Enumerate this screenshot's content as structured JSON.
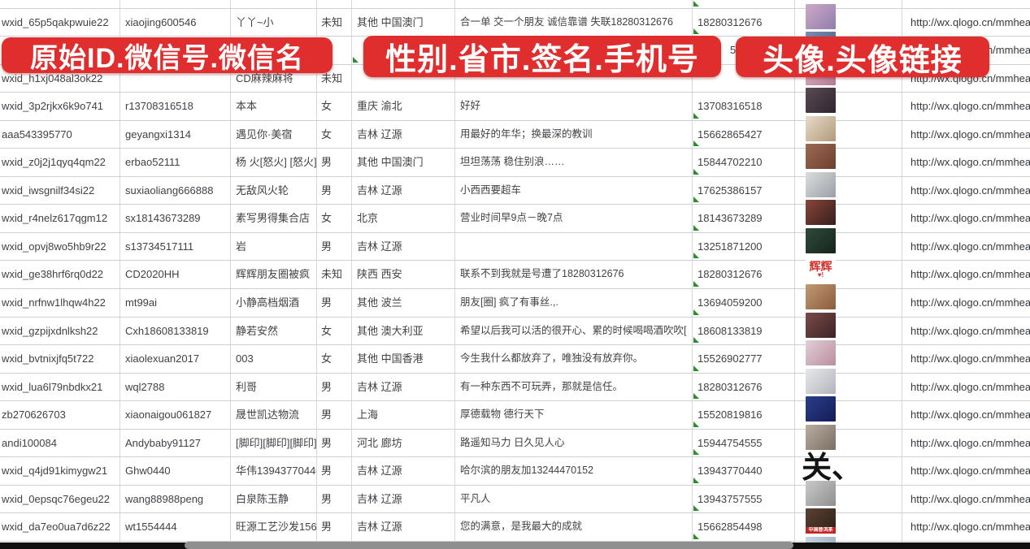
{
  "banners": [
    {
      "label": "原始ID.微信号.微信名"
    },
    {
      "label": "性别.省市.签名.手机号"
    },
    {
      "label": "头像.头像链接"
    }
  ],
  "colors": {
    "banner_red": "#e02e2e",
    "banner_text": "#ffffff",
    "gridline": "#ccd1d8",
    "flag_green": "#2e8b2e"
  },
  "table": {
    "column_semantics": [
      "original-id",
      "wechat-id",
      "wechat-name",
      "gender",
      "province-city",
      "signature",
      "phone",
      "avatar",
      "avatar-link"
    ],
    "rows": [
      {
        "sliver": true,
        "id": "",
        "wechat": "",
        "name": "",
        "gender": "",
        "region": "",
        "signature": "",
        "phone": "",
        "url": "",
        "flags": {
          "phone": true
        },
        "avatar": null
      },
      {
        "id": "wxid_65p5qakpwuie22",
        "wechat": "xiaojing600546",
        "name": "丫丫~小",
        "gender": "未知",
        "region": "其他 中国澳门",
        "signature": "合一单 交一个朋友 诚信靠谱 失联18280312676",
        "phone": "18280312676",
        "url": "http://wx.qlogo.cn/mmhead",
        "flags": {
          "phone": true
        },
        "avatar": {
          "kind": "photo",
          "c1": "#cfa8c6",
          "c2": "#8e7fae"
        }
      },
      {
        "id": "",
        "wechat": "",
        "name": "",
        "gender": "",
        "region": "",
        "signature": "",
        "phone": "5386",
        "phone_indent": true,
        "url": "http://wx.qlogo.cn/mmhead",
        "flags": {
          "region": true
        },
        "avatar": {
          "kind": "photo",
          "c1": "#7a8fb5",
          "c2": "#4a5c80"
        }
      },
      {
        "id": "wxid_h1xj048al3ok22",
        "wechat": "",
        "name": "CD麻辣麻将",
        "gender": "未知",
        "region": "",
        "signature": "",
        "phone": "",
        "url": "http://wx.qlogo.cn/mmhead",
        "flags": {},
        "avatar": {
          "kind": "photo",
          "c1": "#e3b7c4",
          "c2": "#b27a92"
        }
      },
      {
        "id": "wxid_3p2rjkx6k9o741",
        "wechat": "r13708316518",
        "name": "本本",
        "gender": "女",
        "region": "重庆 渝北",
        "signature": "好好",
        "phone": "13708316518",
        "url": "http://wx.qlogo.cn/mmhead",
        "flags": {
          "phone": true
        },
        "avatar": {
          "kind": "photo",
          "c1": "#5a4a52",
          "c2": "#2e2630"
        }
      },
      {
        "id": "aaa543395770",
        "wechat": "geyangxi1314",
        "name": "遇见你·美宿",
        "gender": "女",
        "region": "吉林 辽源",
        "signature": "用最好的年华；换最深的教训",
        "phone": "15662865427",
        "url": "http://wx.qlogo.cn/mmhead",
        "flags": {
          "phone": true
        },
        "avatar": {
          "kind": "photo",
          "c1": "#e9dac9",
          "c2": "#b09a7a"
        }
      },
      {
        "id": "wxid_z0j2j1qyq4qm22",
        "wechat": "erbao52111",
        "name": "杨 火[怒火] [怒火]",
        "gender": "男",
        "region": "其他 中国澳门",
        "signature": "坦坦荡荡 稳住别浪……",
        "phone": "15844702210",
        "url": "http://wx.qlogo.cn/mmhead",
        "flags": {
          "phone": true
        },
        "avatar": {
          "kind": "photo",
          "c1": "#9a6a52",
          "c2": "#6e3f30"
        }
      },
      {
        "id": "wxid_iwsgnilf34si22",
        "wechat": "suxiaoliang666888",
        "name": "无敌风火轮",
        "gender": "男",
        "region": "吉林 辽源",
        "signature": "小西西要超车",
        "phone": "17625386157",
        "url": "http://wx.qlogo.cn/mmhead",
        "flags": {
          "phone": true
        },
        "avatar": {
          "kind": "photo",
          "c1": "#dcdcdc",
          "c2": "#9aa0a8"
        }
      },
      {
        "id": "wxid_r4nelz617qgm12",
        "wechat": "sx18143673289",
        "name": "素写男得集合店",
        "gender": "女",
        "region": "北京",
        "signature": "营业时间早9点－晚7点",
        "phone": "18143673289",
        "url": "http://wx.qlogo.cn/mmhead",
        "flags": {
          "phone": true
        },
        "avatar": {
          "kind": "photo",
          "c1": "#8a4438",
          "c2": "#35201c"
        }
      },
      {
        "id": "wxid_opvj8wo5hb9r22",
        "wechat": "s13734517111",
        "name": "岩",
        "gender": "男",
        "region": "吉林 辽源",
        "signature": "",
        "phone": "13251871200",
        "url": "http://wx.qlogo.cn/mmhead",
        "flags": {
          "phone": true
        },
        "avatar": {
          "kind": "photo",
          "c1": "#2e4a3a",
          "c2": "#16251c"
        }
      },
      {
        "id": "wxid_ge38hrf6rq0d22",
        "wechat": "CD2020HH",
        "name": "辉辉朋友圈被疯",
        "gender": "未知",
        "region": "陕西 西安",
        "signature": "联系不到我就是号遭了18280312676",
        "phone": "18280312676",
        "url": "http://wx.qlogo.cn/mmhead",
        "flags": {
          "phone": true
        },
        "avatar": {
          "kind": "text",
          "text": "辉辉",
          "sub": "♥!",
          "color": "#d0302a"
        }
      },
      {
        "id": "wxid_nrfnw1lhqw4h22",
        "wechat": "mt99ai",
        "name": "小静高档烟酒",
        "gender": "男",
        "region": "其他 波兰",
        "signature": "朋友[圈] 疯了有事丝.,.",
        "phone": "13694059200",
        "url": "http://wx.qlogo.cn/mmhead",
        "flags": {
          "phone": true
        },
        "avatar": {
          "kind": "photo",
          "c1": "#c09a72",
          "c2": "#8a5c3e"
        }
      },
      {
        "id": "wxid_gzpijxdnlksh22",
        "wechat": "Cxh18608133819",
        "name": "静若安然",
        "gender": "女",
        "region": "其他 澳大利亚",
        "signature": "希望以后我可以活的很开心、累的时候喝喝酒吹吹[",
        "phone": "18608133819",
        "url": "http://wx.qlogo.cn/mmhead",
        "flags": {
          "phone": true
        },
        "avatar": {
          "kind": "photo",
          "c1": "#7a4a4a",
          "c2": "#3c2326"
        }
      },
      {
        "id": "wxid_bvtnixjfq5t722",
        "wechat": "xiaolexuan2017",
        "name": "003",
        "gender": "女",
        "region": "其他 中国香港",
        "signature": "今生我什么都放弃了，唯独没有放弃你。",
        "phone": "15526902777",
        "url": "http://wx.qlogo.cn/mmhead",
        "flags": {
          "phone": true
        },
        "avatar": {
          "kind": "photo",
          "c1": "#e2ced6",
          "c2": "#b98fa0"
        }
      },
      {
        "id": "wxid_lua6l79nbdkx21",
        "wechat": "wql2788",
        "name": "利哥",
        "gender": "男",
        "region": "吉林 辽源",
        "signature": "有一种东西不可玩弄，那就是信任。",
        "phone": "18280312676",
        "url": "http://wx.qlogo.cn/mmhead",
        "flags": {
          "phone": true
        },
        "avatar": {
          "kind": "photo",
          "c1": "#e9e9eb",
          "c2": "#b0b4bc"
        }
      },
      {
        "id": "zb270626703",
        "wechat": "xiaonaigou061827",
        "name": "晟世凯达物流",
        "gender": "男",
        "region": "上海",
        "signature": "厚德载物 德行天下",
        "phone": "15520819816",
        "url": "http://wx.qlogo.cn/mmhead",
        "flags": {
          "phone": true
        },
        "avatar": {
          "kind": "photo",
          "c1": "#2a3e8c",
          "c2": "#141c55"
        }
      },
      {
        "id": "andi100084",
        "wechat": "Andybaby91127",
        "name": "[脚印][脚印][脚印][脚",
        "gender": "男",
        "region": "河北 廊坊",
        "signature": "路遥知马力 日久见人心",
        "phone": "15944754555",
        "url": "http://wx.qlogo.cn/mmhead",
        "flags": {
          "phone": true
        },
        "avatar": {
          "kind": "photo",
          "c1": "#b8ada0",
          "c2": "#7a6f62"
        }
      },
      {
        "id": "wxid_q4jd91kimygw21",
        "wechat": "Ghw0440",
        "name": "华伟13943770440",
        "gender": "男",
        "region": "吉林 辽源",
        "signature": "哈尔滨的朋友加13244470152",
        "phone": "13943770440",
        "url": "http://wx.qlogo.cn/mmhead",
        "flags": {
          "phone": true
        },
        "avatar": {
          "kind": "glyph",
          "text": "关、"
        }
      },
      {
        "id": "wxid_0epsqc76egeu22",
        "wechat": "wang88988peng",
        "name": "白泉陈玉静",
        "gender": "男",
        "region": "吉林 辽源",
        "signature": "平凡人",
        "phone": "13943757555",
        "url": "http://wx.qlogo.cn/mmhead",
        "flags": {
          "phone": true
        },
        "avatar": {
          "kind": "photo",
          "c1": "#c9c9c9",
          "c2": "#8f8f8f"
        }
      },
      {
        "id": "wxid_da7eo0ua7d6z22",
        "wechat": "wt1554444",
        "name": "旺源工艺沙发15662854",
        "gender": "男",
        "region": "吉林 辽源",
        "signature": "您的满意，是我最大的成就",
        "phone": "15662854498",
        "url": "http://wx.qlogo.cn/mmhead",
        "flags": {
          "phone": true
        },
        "avatar": {
          "kind": "photo",
          "c1": "#5a4132",
          "c2": "#2e2018",
          "strip": "中国普洱茶"
        }
      },
      {
        "id": "",
        "wechat": "",
        "name": "",
        "gender": "",
        "region": "",
        "signature": "",
        "phone": "",
        "url": "",
        "flags": {},
        "avatar": {
          "kind": "photo",
          "c1": "#c8d4e0",
          "c2": "#8aa0b8"
        }
      }
    ]
  }
}
